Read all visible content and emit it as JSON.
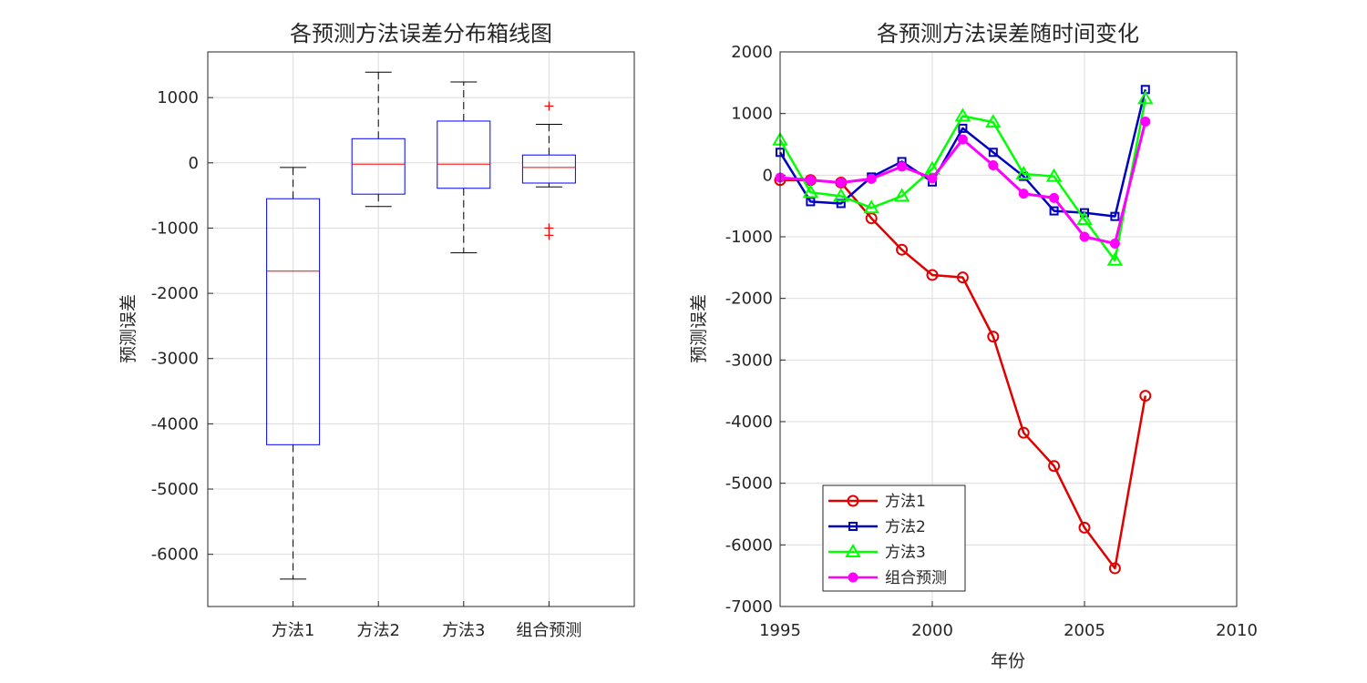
{
  "chart_data": [
    {
      "type": "box",
      "title": "各预测方法误差分布箱线图",
      "xlabel": "",
      "ylabel": "预测误差",
      "categories": [
        "方法1",
        "方法2",
        "方法3",
        "组合预测"
      ],
      "ylim": [
        -6800,
        1700
      ],
      "yticks": [
        1000,
        0,
        -1000,
        -2000,
        -3000,
        -4000,
        -5000,
        -6000
      ],
      "ytick_labels": [
        "1000",
        "0",
        "-1000",
        "-2000",
        "-3000",
        "-4000",
        "-5000",
        "-6000"
      ],
      "grid": true,
      "boxes": [
        {
          "name": "方法1",
          "q1": -4320,
          "median": -1660,
          "q3": -550,
          "whisker_low": -6380,
          "whisker_high": -70,
          "outliers": []
        },
        {
          "name": "方法2",
          "q1": -480,
          "median": -20,
          "q3": 370,
          "whisker_low": -670,
          "whisker_high": 1390,
          "outliers": []
        },
        {
          "name": "方法3",
          "q1": -390,
          "median": -20,
          "q3": 640,
          "whisker_low": -1380,
          "whisker_high": 1240,
          "outliers": []
        },
        {
          "name": "组合预测",
          "q1": -310,
          "median": -70,
          "q3": 120,
          "whisker_low": -370,
          "whisker_high": 590,
          "outliers": [
            870,
            -1000,
            -1110
          ]
        }
      ],
      "colors": {
        "box": "#0000ff",
        "median": "#ff0000",
        "whisker": "#000000",
        "outlier": "#ff0000"
      }
    },
    {
      "type": "line",
      "title": "各预测方法误差随时间变化",
      "xlabel": "年份",
      "ylabel": "预测误差",
      "xlim": [
        1995,
        2010
      ],
      "ylim": [
        -7000,
        2000
      ],
      "xticks": [
        1995,
        2000,
        2005,
        2010
      ],
      "xtick_labels": [
        "1995",
        "2000",
        "2005",
        "2010"
      ],
      "yticks": [
        2000,
        1000,
        0,
        -1000,
        -2000,
        -3000,
        -4000,
        -5000,
        -6000,
        -7000
      ],
      "ytick_labels": [
        "2000",
        "1000",
        "0",
        "-1000",
        "-2000",
        "-3000",
        "-4000",
        "-5000",
        "-6000",
        "-7000"
      ],
      "grid": true,
      "legend": "bottom-left",
      "x": [
        1995,
        1996,
        1997,
        1998,
        1999,
        2000,
        2001,
        2002,
        2003,
        2004,
        2005,
        2006,
        2007
      ],
      "series": [
        {
          "name": "方法1",
          "color": "#e00000",
          "marker": "circle",
          "values": [
            -80,
            -80,
            -120,
            -700,
            -1210,
            -1620,
            -1660,
            -2620,
            -4180,
            -4720,
            -5720,
            -6380,
            -3580
          ]
        },
        {
          "name": "方法2",
          "color": "#0000c0",
          "marker": "square",
          "values": [
            370,
            -430,
            -460,
            -30,
            220,
            -110,
            760,
            370,
            -20,
            -580,
            -610,
            -670,
            1390
          ]
        },
        {
          "name": "方法3",
          "color": "#00ff00",
          "marker": "triangle",
          "values": [
            570,
            -280,
            -340,
            -530,
            -340,
            100,
            960,
            860,
            20,
            -20,
            -720,
            -1380,
            1240
          ]
        },
        {
          "name": "组合预测",
          "color": "#ff00ff",
          "marker": "dot",
          "values": [
            -40,
            -80,
            -120,
            -60,
            140,
            -50,
            580,
            160,
            -300,
            -370,
            -1000,
            -1110,
            870
          ]
        }
      ]
    }
  ]
}
